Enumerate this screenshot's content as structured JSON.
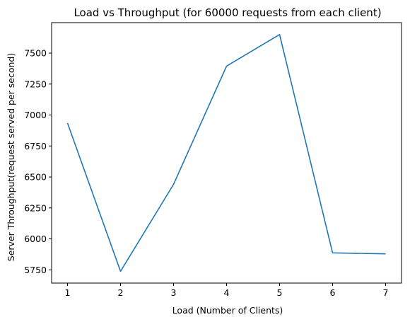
{
  "chart_data": {
    "type": "line",
    "title": "Load vs Throughput (for 60000 requests from each client)",
    "xlabel": "Load (Number of Clients)",
    "ylabel": "Server Throughput(request served per second)",
    "x": [
      1,
      2,
      3,
      4,
      5,
      6,
      7
    ],
    "series": [
      {
        "values": [
          6935,
          5738,
          6440,
          7395,
          7650,
          5887,
          5879
        ],
        "color": "#1f77b4"
      }
    ],
    "xlim": [
      0.7,
      7.3
    ],
    "ylim": [
      5643,
      7746
    ],
    "xticks": [
      1,
      2,
      3,
      4,
      5,
      6,
      7
    ],
    "yticks": [
      5750,
      6000,
      6250,
      6500,
      6750,
      7000,
      7250,
      7500
    ],
    "grid": false
  }
}
